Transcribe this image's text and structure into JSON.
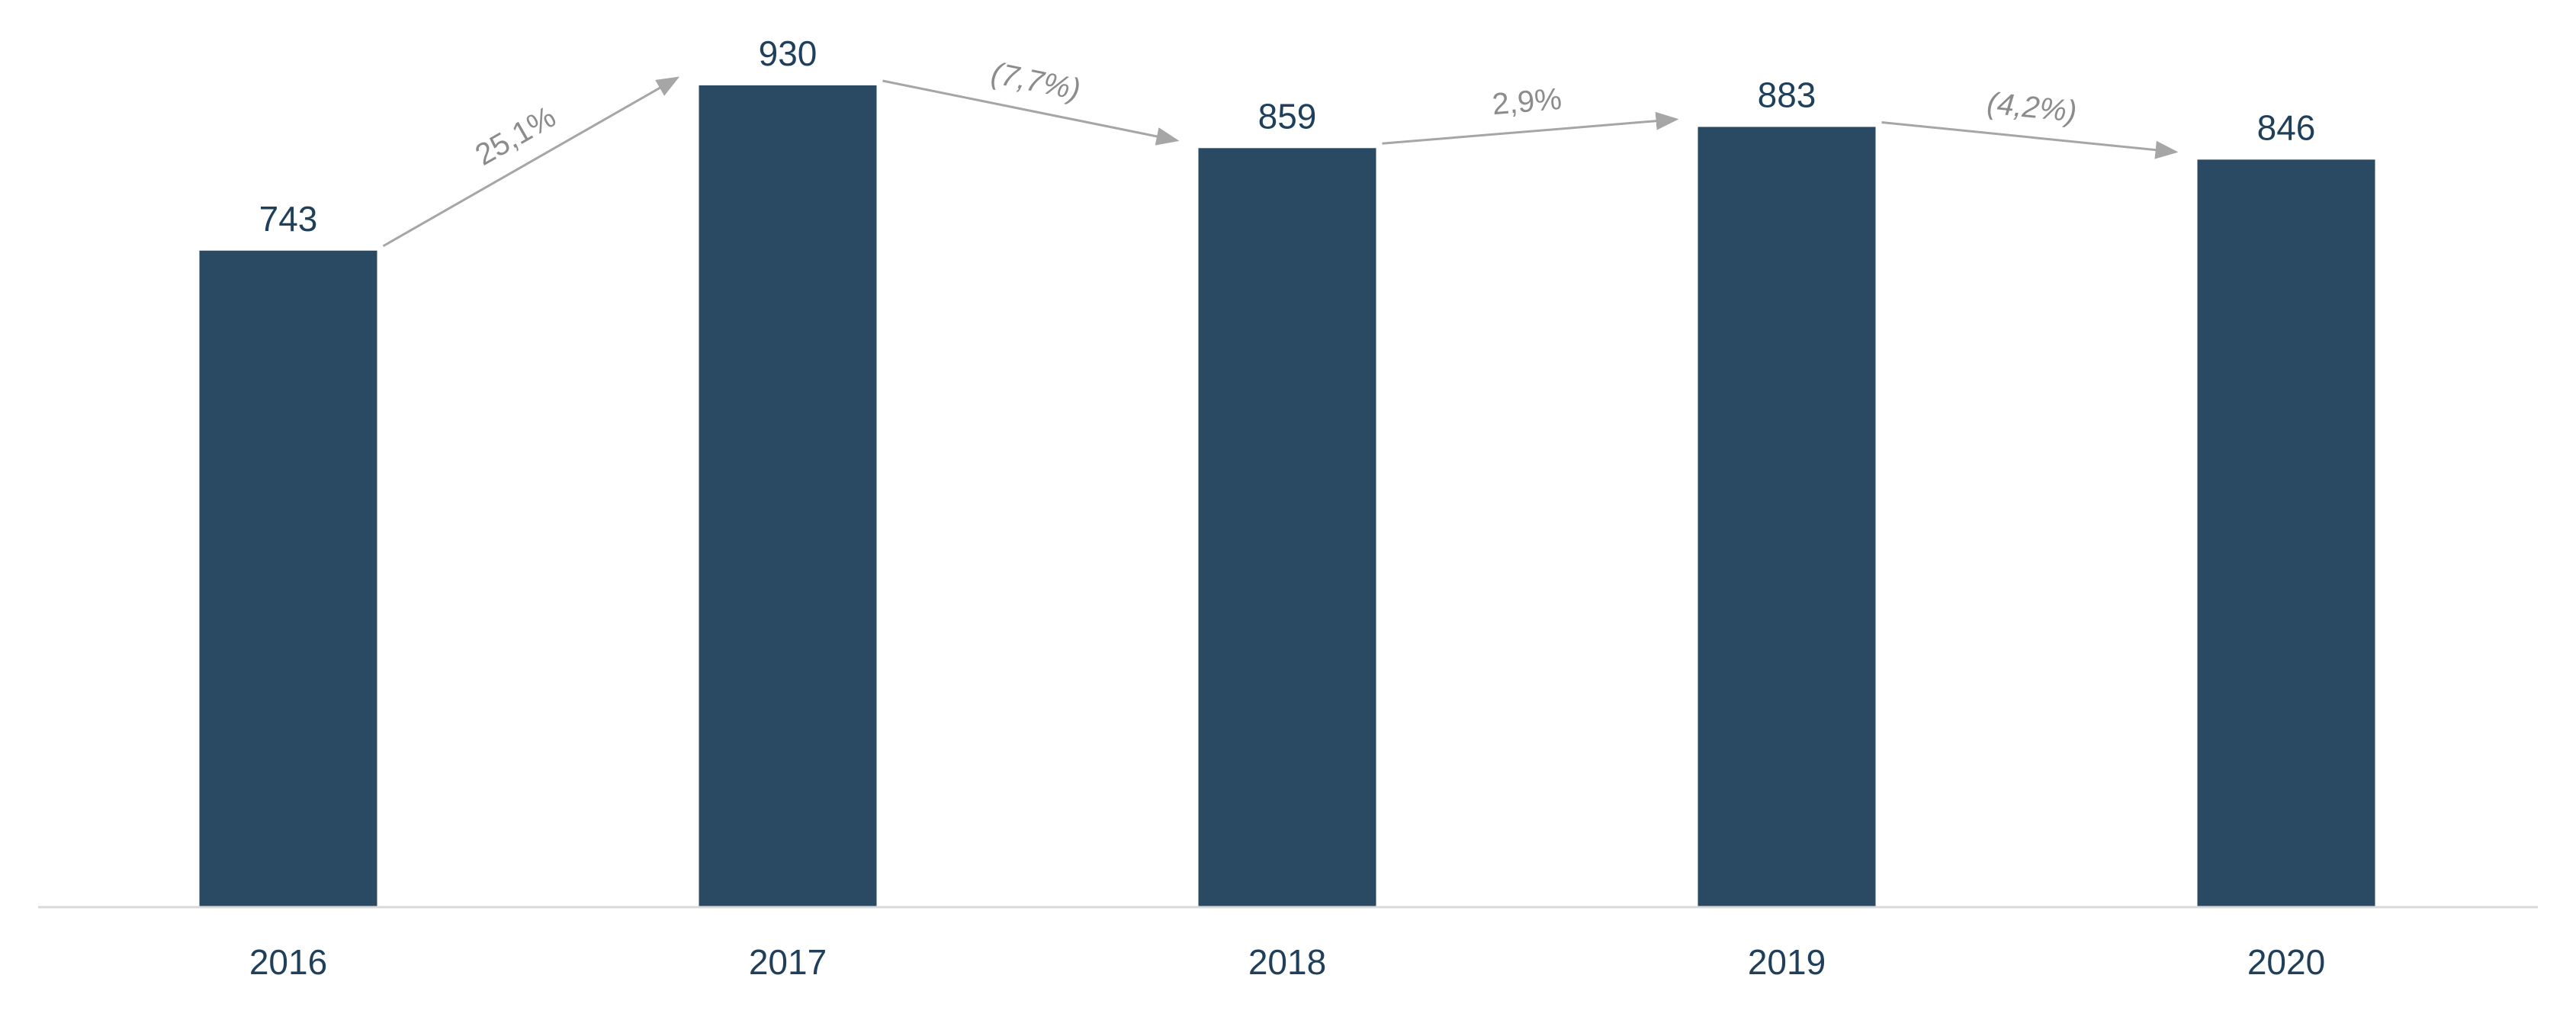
{
  "colors": {
    "bar": "#2a4a63",
    "value_text": "#1f3f5b",
    "category_text": "#1f3f5b",
    "arrow": "#a6a6a6",
    "change_text": "#8c8c8c",
    "axis": "#d9d9d9"
  },
  "chart_data": {
    "type": "bar",
    "categories": [
      "2016",
      "2017",
      "2018",
      "2019",
      "2020"
    ],
    "values": [
      743,
      930,
      859,
      883,
      846
    ],
    "value_labels": [
      "743",
      "930",
      "859",
      "883",
      "846"
    ],
    "ylim": [
      0,
      930
    ],
    "grid": false,
    "annotations": [
      {
        "from": "2016",
        "to": "2017",
        "text": "25,1%",
        "italic": false
      },
      {
        "from": "2017",
        "to": "2018",
        "text": "(7,7%)",
        "italic": true
      },
      {
        "from": "2018",
        "to": "2019",
        "text": "2,9%",
        "italic": false
      },
      {
        "from": "2019",
        "to": "2020",
        "text": "(4,2%)",
        "italic": true
      }
    ]
  }
}
